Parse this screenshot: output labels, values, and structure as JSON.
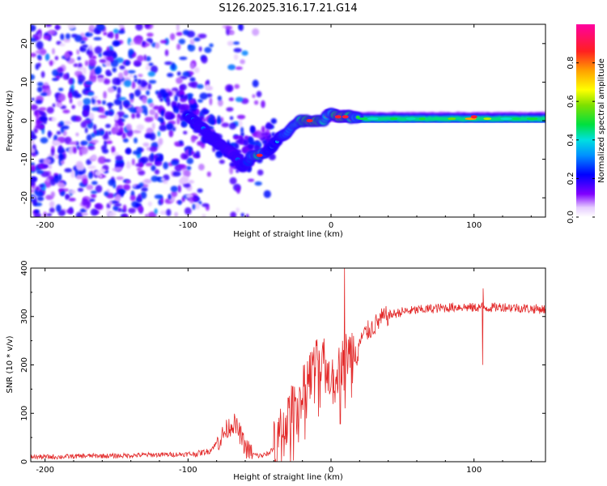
{
  "title": "S126.2025.316.17.21.G14",
  "chart_data": [
    {
      "type": "heatmap",
      "xlabel": "Height of straight line (km)",
      "ylabel": "Frequency (Hz)",
      "xlim": [
        -210,
        150
      ],
      "ylim": [
        -25,
        25
      ],
      "x_ticks": [
        -200,
        -100,
        0,
        100
      ],
      "x_tick_labels": [
        "-200",
        "-100",
        "0",
        "100"
      ],
      "y_ticks": [
        -20,
        -10,
        0,
        10,
        20
      ],
      "y_tick_labels": [
        "-20",
        "-10",
        "0",
        "10",
        "20"
      ],
      "colorbar": {
        "label": "Normalized spectral amplitude",
        "range": [
          0,
          1
        ],
        "ticks": [
          0.0,
          0.2,
          0.4,
          0.6,
          0.8
        ],
        "tick_labels": [
          "0.0",
          "0.2",
          "0.4",
          "0.6",
          "0.8"
        ]
      },
      "ridge": {
        "x": [
          -100,
          -92,
          -85,
          -78,
          -70,
          -62,
          -55,
          -50,
          -45,
          -40,
          -35,
          -30,
          -25,
          -20,
          -15,
          -10,
          -5,
          0,
          5,
          10,
          20,
          40,
          60,
          80,
          100,
          120,
          150
        ],
        "frequency": [
          1,
          -1,
          -4,
          -6,
          -8,
          -12,
          -9,
          -9,
          -8,
          -6,
          -4,
          -3,
          -1,
          0,
          0,
          0,
          0,
          2,
          1,
          1,
          0.5,
          0.5,
          0.5,
          0.5,
          0.5,
          0.5,
          0.5
        ],
        "amplitude": [
          0.35,
          0.3,
          0.3,
          0.3,
          0.25,
          0.3,
          0.5,
          0.8,
          0.4,
          0.35,
          0.4,
          0.55,
          0.6,
          0.75,
          0.9,
          0.9,
          0.7,
          0.6,
          0.95,
          0.9,
          0.45,
          0.45,
          0.45,
          0.45,
          0.85,
          0.45,
          0.45
        ]
      },
      "noise_region_x": [
        -210,
        -40
      ]
    },
    {
      "type": "line",
      "xlabel": "Height of straight line (km)",
      "ylabel": "SNR (10 * v/v)",
      "xlim": [
        -210,
        150
      ],
      "ylim": [
        0,
        400
      ],
      "x_ticks": [
        -200,
        -100,
        0,
        100
      ],
      "x_tick_labels": [
        "-200",
        "-100",
        "0",
        "100"
      ],
      "y_ticks": [
        0,
        100,
        200,
        300,
        400
      ],
      "y_tick_labels": [
        "0",
        "100",
        "200",
        "300",
        "400"
      ],
      "series": [
        {
          "name": "SNR",
          "color": "#e32a2a",
          "x": [
            -210,
            -190,
            -170,
            -150,
            -130,
            -110,
            -95,
            -85,
            -78,
            -72,
            -68,
            -64,
            -60,
            -55,
            -50,
            -45,
            -40,
            -35,
            -30,
            -25,
            -20,
            -15,
            -10,
            -5,
            0,
            5,
            10,
            15,
            20,
            25,
            30,
            35,
            40,
            50,
            60,
            70,
            80,
            90,
            100,
            105,
            110,
            120,
            130,
            140,
            150
          ],
          "values": [
            10,
            10,
            12,
            12,
            14,
            15,
            16,
            22,
            45,
            70,
            80,
            60,
            30,
            15,
            12,
            15,
            30,
            60,
            90,
            120,
            150,
            180,
            200,
            200,
            180,
            190,
            220,
            230,
            250,
            268,
            280,
            295,
            302,
            310,
            313,
            316,
            318,
            320,
            318,
            320,
            318,
            320,
            318,
            316,
            315
          ]
        }
      ],
      "spikes": [
        {
          "x": 9.5,
          "value": 400
        },
        {
          "x": 6.5,
          "value": 78
        },
        {
          "x": 106,
          "value": 200
        },
        {
          "x": 106.5,
          "value": 358
        }
      ]
    }
  ]
}
